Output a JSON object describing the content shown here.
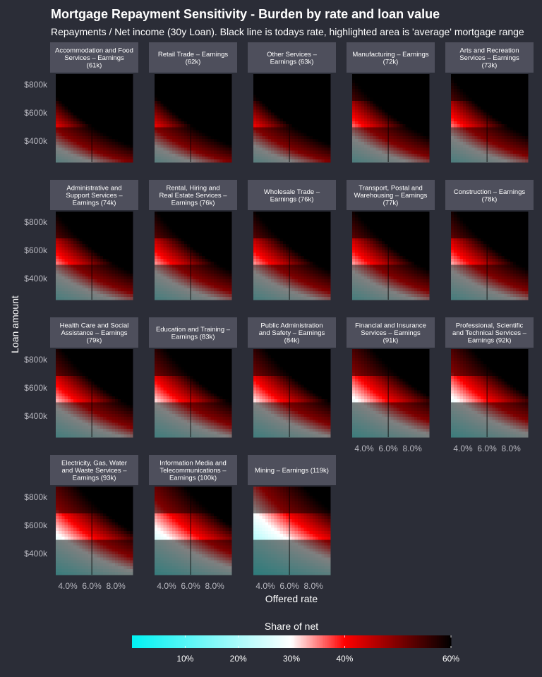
{
  "title": "Mortgage Repayment Sensitivity - Burden by rate and loan value",
  "subtitle": "Repayments / Net income (30y Loan). Black line is todays rate, highlighted area is 'average' mortgage range",
  "chart_data": {
    "type": "heatmap",
    "xlabel": "Offered rate",
    "ylabel": "Loan amount",
    "x_ticks": [
      "4.0%",
      "6.0%",
      "8.0%"
    ],
    "x_tick_values": [
      4.0,
      6.0,
      8.0
    ],
    "y_ticks": [
      "$400k",
      "$600k",
      "$800k"
    ],
    "y_tick_values": [
      400,
      600,
      800
    ],
    "xlim": [
      3.0,
      9.4
    ],
    "ylim": [
      250,
      875
    ],
    "todays_rate": 6.0,
    "highlight_range_k": [
      500,
      680
    ],
    "loan_term_years": 30,
    "legend": {
      "title": "Share of net",
      "ticks": [
        "10%",
        "20%",
        "30%",
        "40%",
        "60%"
      ],
      "tick_values": [
        10,
        20,
        30,
        40,
        60
      ],
      "range": [
        0,
        60
      ],
      "colors": [
        "#00f2f2",
        "#ffffff",
        "#ff0000",
        "#000000"
      ],
      "color_stops": [
        0,
        30,
        40,
        60
      ]
    },
    "panels": [
      {
        "label": "Accommodation and Food Services – Earnings (61k)",
        "income_k": 61
      },
      {
        "label": "Retail Trade – Earnings (62k)",
        "income_k": 62
      },
      {
        "label": "Other Services – Earnings (63k)",
        "income_k": 63
      },
      {
        "label": "Manufacturing – Earnings (72k)",
        "income_k": 72
      },
      {
        "label": "Arts and Recreation Services – Earnings (73k)",
        "income_k": 73
      },
      {
        "label": "Administrative and Support Services – Earnings (74k)",
        "income_k": 74
      },
      {
        "label": "Rental, Hiring and Real Estate Services – Earnings (76k)",
        "income_k": 76
      },
      {
        "label": "Wholesale Trade – Earnings (76k)",
        "income_k": 76
      },
      {
        "label": "Transport, Postal and Warehousing – Earnings (77k)",
        "income_k": 77
      },
      {
        "label": "Construction – Earnings (78k)",
        "income_k": 78
      },
      {
        "label": "Health Care and Social Assistance – Earnings (79k)",
        "income_k": 79
      },
      {
        "label": "Education and Training – Earnings (83k)",
        "income_k": 83
      },
      {
        "label": "Public Administration and Safety – Earnings (84k)",
        "income_k": 84
      },
      {
        "label": "Financial and Insurance Services – Earnings (91k)",
        "income_k": 91
      },
      {
        "label": "Professional, Scientific and Technical Services – Earnings (92k)",
        "income_k": 92
      },
      {
        "label": "Electricity, Gas, Water and Waste Services – Earnings (93k)",
        "income_k": 93
      },
      {
        "label": "Information Media and Telecommunications – Earnings (100k)",
        "income_k": 100
      },
      {
        "label": "Mining – Earnings (119k)",
        "income_k": 119
      }
    ],
    "strip_lines": [
      [
        "Accommodation and Food",
        "Services – Earnings",
        "(61k)"
      ],
      [
        "Retail Trade – Earnings",
        "(62k)"
      ],
      [
        "Other Services –",
        "Earnings (63k)"
      ],
      [
        "Manufacturing – Earnings",
        "(72k)"
      ],
      [
        "Arts and Recreation",
        "Services – Earnings",
        "(73k)"
      ],
      [
        "Administrative and",
        "Support Services –",
        "Earnings (74k)"
      ],
      [
        "Rental, Hiring and",
        "Real Estate Services –",
        "Earnings (76k)"
      ],
      [
        "Wholesale Trade –",
        "Earnings (76k)"
      ],
      [
        "Transport, Postal and",
        "Warehousing – Earnings",
        "(77k)"
      ],
      [
        "Construction – Earnings",
        "(78k)"
      ],
      [
        "Health Care and Social",
        "Assistance – Earnings",
        "(79k)"
      ],
      [
        "Education and Training –",
        "Earnings (83k)"
      ],
      [
        "Public Administration",
        "and Safety – Earnings",
        "(84k)"
      ],
      [
        "Financial and Insurance",
        "Services – Earnings",
        "(91k)"
      ],
      [
        "Professional, Scientific",
        "and Technical Services –",
        "Earnings (92k)"
      ],
      [
        "Electricity, Gas, Water",
        "and Waste Services –",
        "Earnings (93k)"
      ],
      [
        "Information Media and",
        "Telecommunications –",
        "Earnings (100k)"
      ],
      [
        "Mining – Earnings (119k)"
      ]
    ]
  }
}
